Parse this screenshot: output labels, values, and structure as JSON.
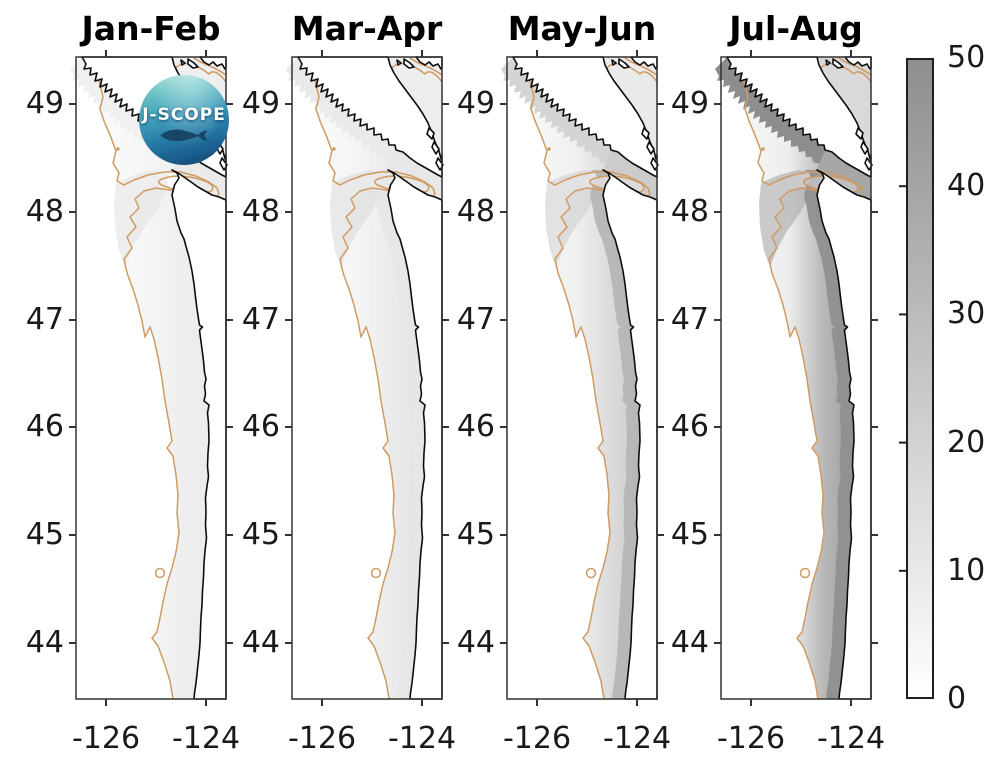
{
  "panels": [
    {
      "title": "Jan-Feb",
      "shading": {
        "shelf_stops": [
          "#fdfdfd",
          "#f6f6f6",
          "#efefef",
          "#eaeaea"
        ],
        "canyon": "#e3e3e3",
        "nearshore": "none",
        "vi_band": "#f0f0f0",
        "strait": "#eaeaea",
        "georgia": "#efefef",
        "canyon_loop_fill": "none"
      }
    },
    {
      "title": "Mar-Apr",
      "shading": {
        "shelf_stops": [
          "#fcfcfc",
          "#f4f4f4",
          "#eaeaea",
          "#e3e3e3"
        ],
        "canyon": "#dbdbdb",
        "nearshore": "#e6e6e6",
        "vi_band": "#eaeaea",
        "strait": "#e7e7e7",
        "georgia": "#ededed",
        "canyon_loop_fill": "none"
      }
    },
    {
      "title": "May-Jun",
      "shading": {
        "shelf_stops": [
          "#fbfbfb",
          "#f0f0f0",
          "#dcdcdc",
          "#c6c6c6"
        ],
        "canyon": "#cecece",
        "nearshore": "#b5b5b5",
        "vi_band": "#d4d4d4",
        "strait": "#cccccc",
        "georgia": "#eaeaea",
        "canyon_loop_fill": "#dddddd"
      }
    },
    {
      "title": "Jul-Aug",
      "shading": {
        "shelf_stops": [
          "#fafafa",
          "#ededed",
          "#b9b9b9",
          "#929292"
        ],
        "canyon": "#a6a6a6",
        "nearshore": "#8f8f8f",
        "vi_band": "#8d8d8d",
        "strait": "#a7a7a7",
        "georgia": "#d9d9d9",
        "canyon_loop_fill": "#c3c3c3"
      }
    }
  ],
  "axes": {
    "lat_ticks": [
      "49",
      "48",
      "47",
      "46",
      "45",
      "44"
    ],
    "lon_ticks": [
      "-126",
      "-124"
    ]
  },
  "colorbar": {
    "ticks": [
      "0",
      "10",
      "20",
      "30",
      "40",
      "50"
    ],
    "min_value": 0,
    "max_value": 50,
    "min_color": "#ffffff",
    "max_color": "#8e8e8e"
  },
  "logo": {
    "text": "J-SCOPE"
  },
  "colors": {
    "contour": "#d09a62",
    "coast": "#0d0d0d",
    "axis": "#333333",
    "land": "#ffffff",
    "ocean": "#ffffff"
  }
}
